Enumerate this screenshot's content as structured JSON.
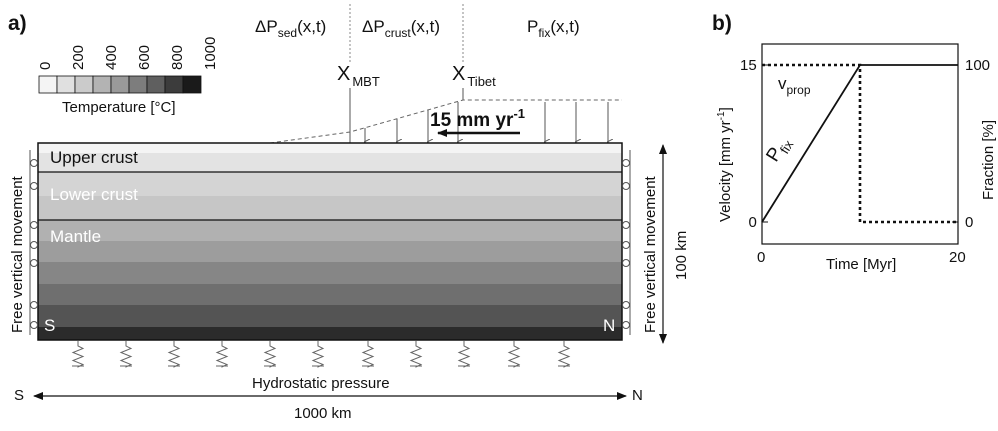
{
  "panel_a": {
    "label": "a)",
    "legend": {
      "ticks": [
        "0",
        "200",
        "400",
        "600",
        "800",
        "1000"
      ],
      "title": "Temperature [°C]",
      "colors": [
        "#f4f4f4",
        "#e0e0e0",
        "#cbcbcb",
        "#b3b3b3",
        "#9a9a9a",
        "#7d7d7d",
        "#5f5f5f",
        "#3c3c3c",
        "#1a1a1a"
      ]
    },
    "top_labels": {
      "p_sed": {
        "base": "ΔP",
        "sub": "sed",
        "args": "(x,t)"
      },
      "p_crust": {
        "base": "ΔP",
        "sub": "crust",
        "args": "(x,t)"
      },
      "p_fix": {
        "base": "P",
        "sub": "fix",
        "args": "(x,t)"
      }
    },
    "x_mbt": {
      "base": "X",
      "sub": "MBT"
    },
    "x_tibet": {
      "base": "X",
      "sub": "Tibet"
    },
    "velocity": {
      "text": "15 mm yr",
      "sup": "-1"
    },
    "layers": {
      "upper_crust": "Upper crust",
      "lower_crust": "Lower crust",
      "mantle": "Mantle"
    },
    "left_side": "Free vertical movement",
    "right_side": "Free vertical movement",
    "corner_s": "S",
    "corner_n": "N",
    "depth": "100 km",
    "bottom_label": "Hydrostatic pressure",
    "axis_s": "S",
    "axis_n": "N",
    "width_label": "1000 km"
  },
  "panel_b": {
    "label": "b)",
    "y_left_label": "Velocity [mm  yr",
    "y_left_sup": "-1",
    "y_left_close": "]",
    "y_right_label": "Fraction [%]",
    "x_label": "Time [Myr]",
    "x_ticks": [
      "0",
      "20"
    ],
    "y_left_ticks": [
      "0",
      "15"
    ],
    "y_right_ticks": [
      "0",
      "100"
    ],
    "v_prop": {
      "base": "v",
      "sub": "prop"
    },
    "p_fix": {
      "base": "P",
      "sub": "fix"
    }
  },
  "chart_data": {
    "type": "line",
    "xlabel": "Time [Myr]",
    "ylabel": "Velocity [mm yr-1]",
    "y2label": "Fraction [%]",
    "xlim": [
      0,
      20
    ],
    "ylim": [
      0,
      15
    ],
    "y2lim": [
      0,
      100
    ],
    "series": [
      {
        "name": "vprop",
        "style": "dotted",
        "axis": "left",
        "x": [
          0,
          10,
          10,
          20
        ],
        "y": [
          15,
          15,
          0,
          0
        ]
      },
      {
        "name": "Pfix",
        "style": "solid",
        "axis": "right",
        "x": [
          0,
          10,
          20
        ],
        "y": [
          0,
          100,
          100
        ]
      }
    ]
  }
}
